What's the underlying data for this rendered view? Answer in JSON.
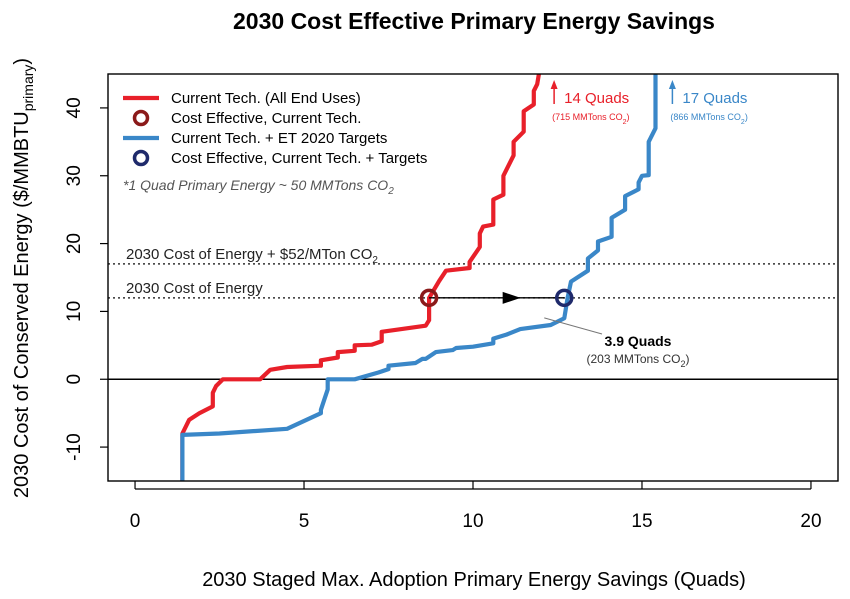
{
  "chart_data": {
    "type": "line",
    "title": "2030 Cost Effective Primary Energy Savings",
    "xlabel": "2030 Staged Max. Adoption Primary Energy Savings (Quads)",
    "ylabel_main": "2030 Cost of Conserved Energy ($/MMBTU",
    "ylabel_sub": "primary",
    "ylabel_close": ")",
    "xlim": [
      -0.8,
      20.8
    ],
    "ylim": [
      -15,
      45
    ],
    "xticks": [
      0,
      5,
      10,
      15,
      20
    ],
    "yticks": [
      -10,
      0,
      10,
      20,
      30,
      40
    ],
    "grid": false,
    "legend_position": "top-left",
    "legend": [
      {
        "label": "Current Tech. (All End Uses)",
        "kind": "line",
        "color": "#e8202a"
      },
      {
        "label": "Cost Effective, Current Tech.",
        "kind": "circle",
        "color": "#8b1a1a"
      },
      {
        "label": "Current Tech. + ET 2020 Targets",
        "kind": "line",
        "color": "#3a87c8"
      },
      {
        "label": "Cost Effective, Current Tech. + Targets",
        "kind": "circle",
        "color": "#1f2a6b"
      }
    ],
    "note": {
      "prefix": "*1 Quad Primary Energy ~ 50 MMTons CO",
      "sub": "2"
    },
    "reference_lines": [
      {
        "y": 17,
        "label": "2030 Cost of Energy + $52/MTon CO",
        "label_sub": "2"
      },
      {
        "y": 12,
        "label": "2030 Cost of Energy",
        "label_sub": ""
      }
    ],
    "series": [
      {
        "name": "Current Tech. (All End Uses)",
        "color": "#e8202a",
        "x": [
          1.4,
          1.4,
          1.6,
          1.9,
          2.3,
          2.3,
          2.4,
          2.6,
          2.6,
          3.7,
          4.0,
          4.5,
          5.5,
          5.5,
          6.0,
          6.0,
          6.5,
          6.5,
          7.0,
          7.3,
          7.3,
          8.6,
          8.7,
          8.7,
          9.0,
          9.2,
          9.9,
          9.9,
          10.2,
          10.2,
          10.3,
          10.6,
          10.6,
          10.9,
          10.9,
          11.2,
          11.2,
          11.5,
          11.5,
          11.8,
          11.8,
          11.9,
          11.95
        ],
        "y": [
          -15,
          -8,
          -6,
          -5,
          -4,
          -2,
          -1,
          0,
          0,
          0,
          1.4,
          1.8,
          2.0,
          2.8,
          3.2,
          4.0,
          4.2,
          5.0,
          5.1,
          5.6,
          7.0,
          7.9,
          8.7,
          12.0,
          14.5,
          16.0,
          16.4,
          17.3,
          19.5,
          21.5,
          22.5,
          22.8,
          26.5,
          27.2,
          30.0,
          33.0,
          35.0,
          36.5,
          39.5,
          40.5,
          42.5,
          43.5,
          45
        ]
      },
      {
        "name": "Current Tech. + ET 2020 Targets",
        "color": "#3a87c8",
        "x": [
          1.4,
          1.4,
          2.5,
          4.5,
          5.5,
          5.5,
          5.6,
          5.7,
          5.7,
          6.5,
          7.2,
          7.5,
          7.5,
          8.3,
          8.5,
          8.6,
          8.9,
          9.4,
          9.5,
          10.0,
          10.6,
          10.6,
          11.0,
          11.4,
          12.3,
          12.5,
          12.7,
          12.8,
          12.9,
          13.4,
          13.4,
          13.7,
          13.7,
          14.1,
          14.1,
          14.5,
          14.5,
          14.9,
          14.9,
          15.0,
          15.2,
          15.2,
          15.4,
          15.4
        ],
        "y": [
          -15,
          -8.2,
          -8.0,
          -7.3,
          -5.0,
          -4.5,
          -3.0,
          -1.5,
          0.0,
          0.0,
          1.0,
          1.5,
          2.0,
          2.4,
          3.0,
          3.0,
          4.0,
          4.3,
          4.6,
          4.8,
          5.3,
          6.0,
          6.6,
          7.4,
          8.0,
          8.5,
          9.0,
          12.0,
          14.4,
          16.0,
          17.8,
          19.0,
          20.3,
          21.0,
          23.8,
          25.0,
          27.0,
          28.0,
          29.0,
          30.0,
          30.1,
          35.0,
          37.0,
          45
        ]
      }
    ],
    "markers": [
      {
        "x": 8.7,
        "y": 12,
        "color": "#8b1a1a"
      },
      {
        "x": 12.7,
        "y": 12,
        "color": "#1f2a6b"
      }
    ],
    "annotations": [
      {
        "label": "14 Quads",
        "co2_prefix": "(715 MMTons CO",
        "co2_sub": "2",
        "co2_suffix": ")",
        "color": "#e8202a",
        "arrow_x": 12.4
      },
      {
        "label": "17 Quads",
        "co2_prefix": "(866 MMTons CO",
        "co2_sub": "2",
        "co2_suffix": ")",
        "color": "#3a87c8",
        "arrow_x": 15.9
      }
    ],
    "gap_annotation": {
      "label": "3.9 Quads",
      "co2_prefix": "(203 MMTons CO",
      "co2_sub": "2",
      "co2_suffix": ")",
      "from_x": 8.7,
      "to_x": 12.7,
      "y": 12
    }
  }
}
